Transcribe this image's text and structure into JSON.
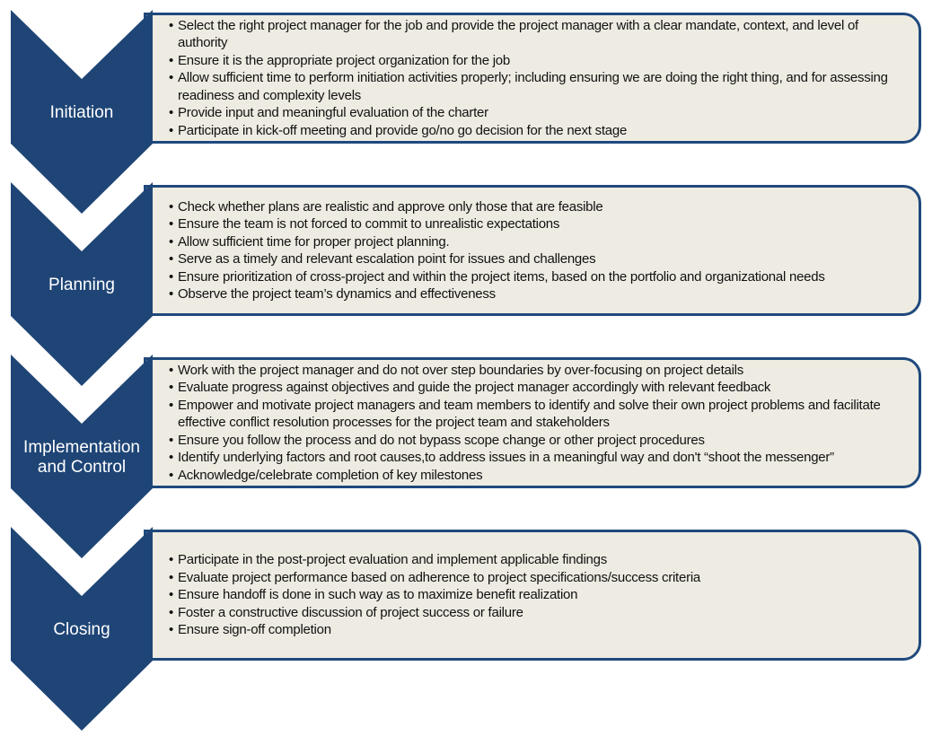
{
  "colors": {
    "chevron": "#1f4576",
    "box_border": "#1f497d",
    "box_fill": "#eeece2"
  },
  "stages": [
    {
      "label": "Initiation",
      "bullets": [
        "Select the right project manager for the job and provide the project manager with a clear mandate, context, and level of authority",
        "Ensure it is the appropriate project organization for the job",
        "Allow sufficient time to perform initiation activities properly; including ensuring we are doing the right thing, and for assessing readiness and complexity levels",
        "Provide input and meaningful evaluation of the charter",
        "Participate in kick-off meeting and provide go/no go decision for the next stage"
      ]
    },
    {
      "label": "Planning",
      "bullets": [
        "Check whether plans are realistic and approve only those that are feasible",
        "Ensure the team is not forced to commit to unrealistic expectations",
        "Allow sufficient time for proper project planning.",
        "Serve as a timely and relevant escalation point for issues and challenges",
        "Ensure prioritization of cross-project and within the project items, based on the portfolio and organizational needs",
        "Observe the project team’s dynamics and effectiveness"
      ]
    },
    {
      "label": "Implementation and Control",
      "bullets": [
        "Work with the project manager and do not over step boundaries by over-focusing on project details",
        "Evaluate progress against objectives and guide the project manager accordingly with relevant feedback",
        "Empower and motivate project managers and team members to identify and solve their own project problems and facilitate effective conflict resolution processes for the project team and stakeholders",
        "Ensure you follow the process and do not bypass scope change or other project procedures",
        "Identify underlying factors and root causes,to address issues in a meaningful way and don't “shoot the messenger”",
        "Acknowledge/celebrate completion of key milestones"
      ]
    },
    {
      "label": "Closing",
      "bullets": [
        "Participate in the post-project evaluation and implement applicable findings",
        "Evaluate project performance based on adherence to project specifications/success criteria",
        "Ensure handoff is done in such way as to maximize benefit realization",
        "Foster a constructive discussion of project success or failure",
        "Ensure sign-off completion"
      ]
    }
  ]
}
